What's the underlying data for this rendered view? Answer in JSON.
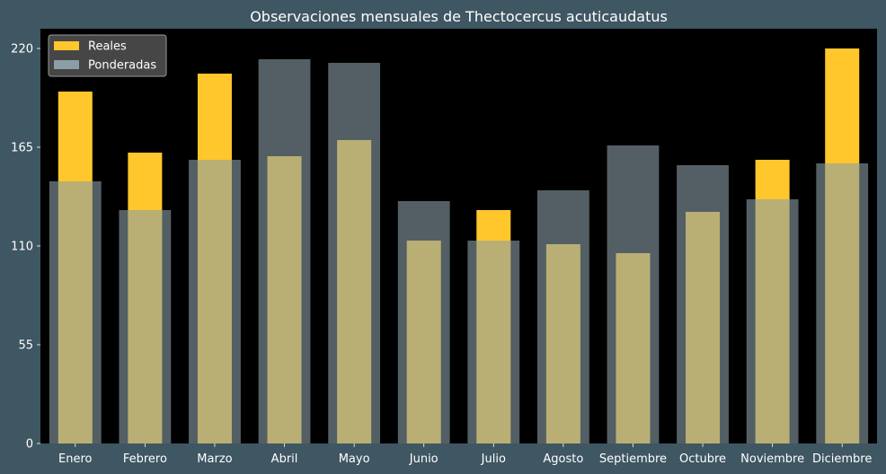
{
  "colors": {
    "figure_background": "#3f5663",
    "plot_background": "#000000",
    "series_reales": "#ffc72c",
    "series_ponderadas": "#8b9ea6",
    "text": "#ffffff"
  },
  "chart_data": {
    "type": "bar",
    "title": "Observaciones mensuales de Thectocercus acuticaudatus",
    "xlabel": "",
    "ylabel": "",
    "categories": [
      "Enero",
      "Febrero",
      "Marzo",
      "Abril",
      "Mayo",
      "Junio",
      "Julio",
      "Agosto",
      "Septiembre",
      "Octubre",
      "Noviembre",
      "Diciembre"
    ],
    "series": [
      {
        "name": "Reales",
        "values": [
          196,
          162,
          206,
          160,
          169,
          113,
          130,
          111,
          106,
          129,
          158,
          220
        ]
      },
      {
        "name": "Ponderadas",
        "values": [
          146,
          130,
          158,
          214,
          212,
          135,
          113,
          141,
          166,
          155,
          136,
          156
        ]
      }
    ],
    "ylim": [
      0,
      231
    ],
    "yticks": [
      0,
      55,
      110,
      165,
      220
    ],
    "grid": false,
    "legend_position": "top-left"
  }
}
